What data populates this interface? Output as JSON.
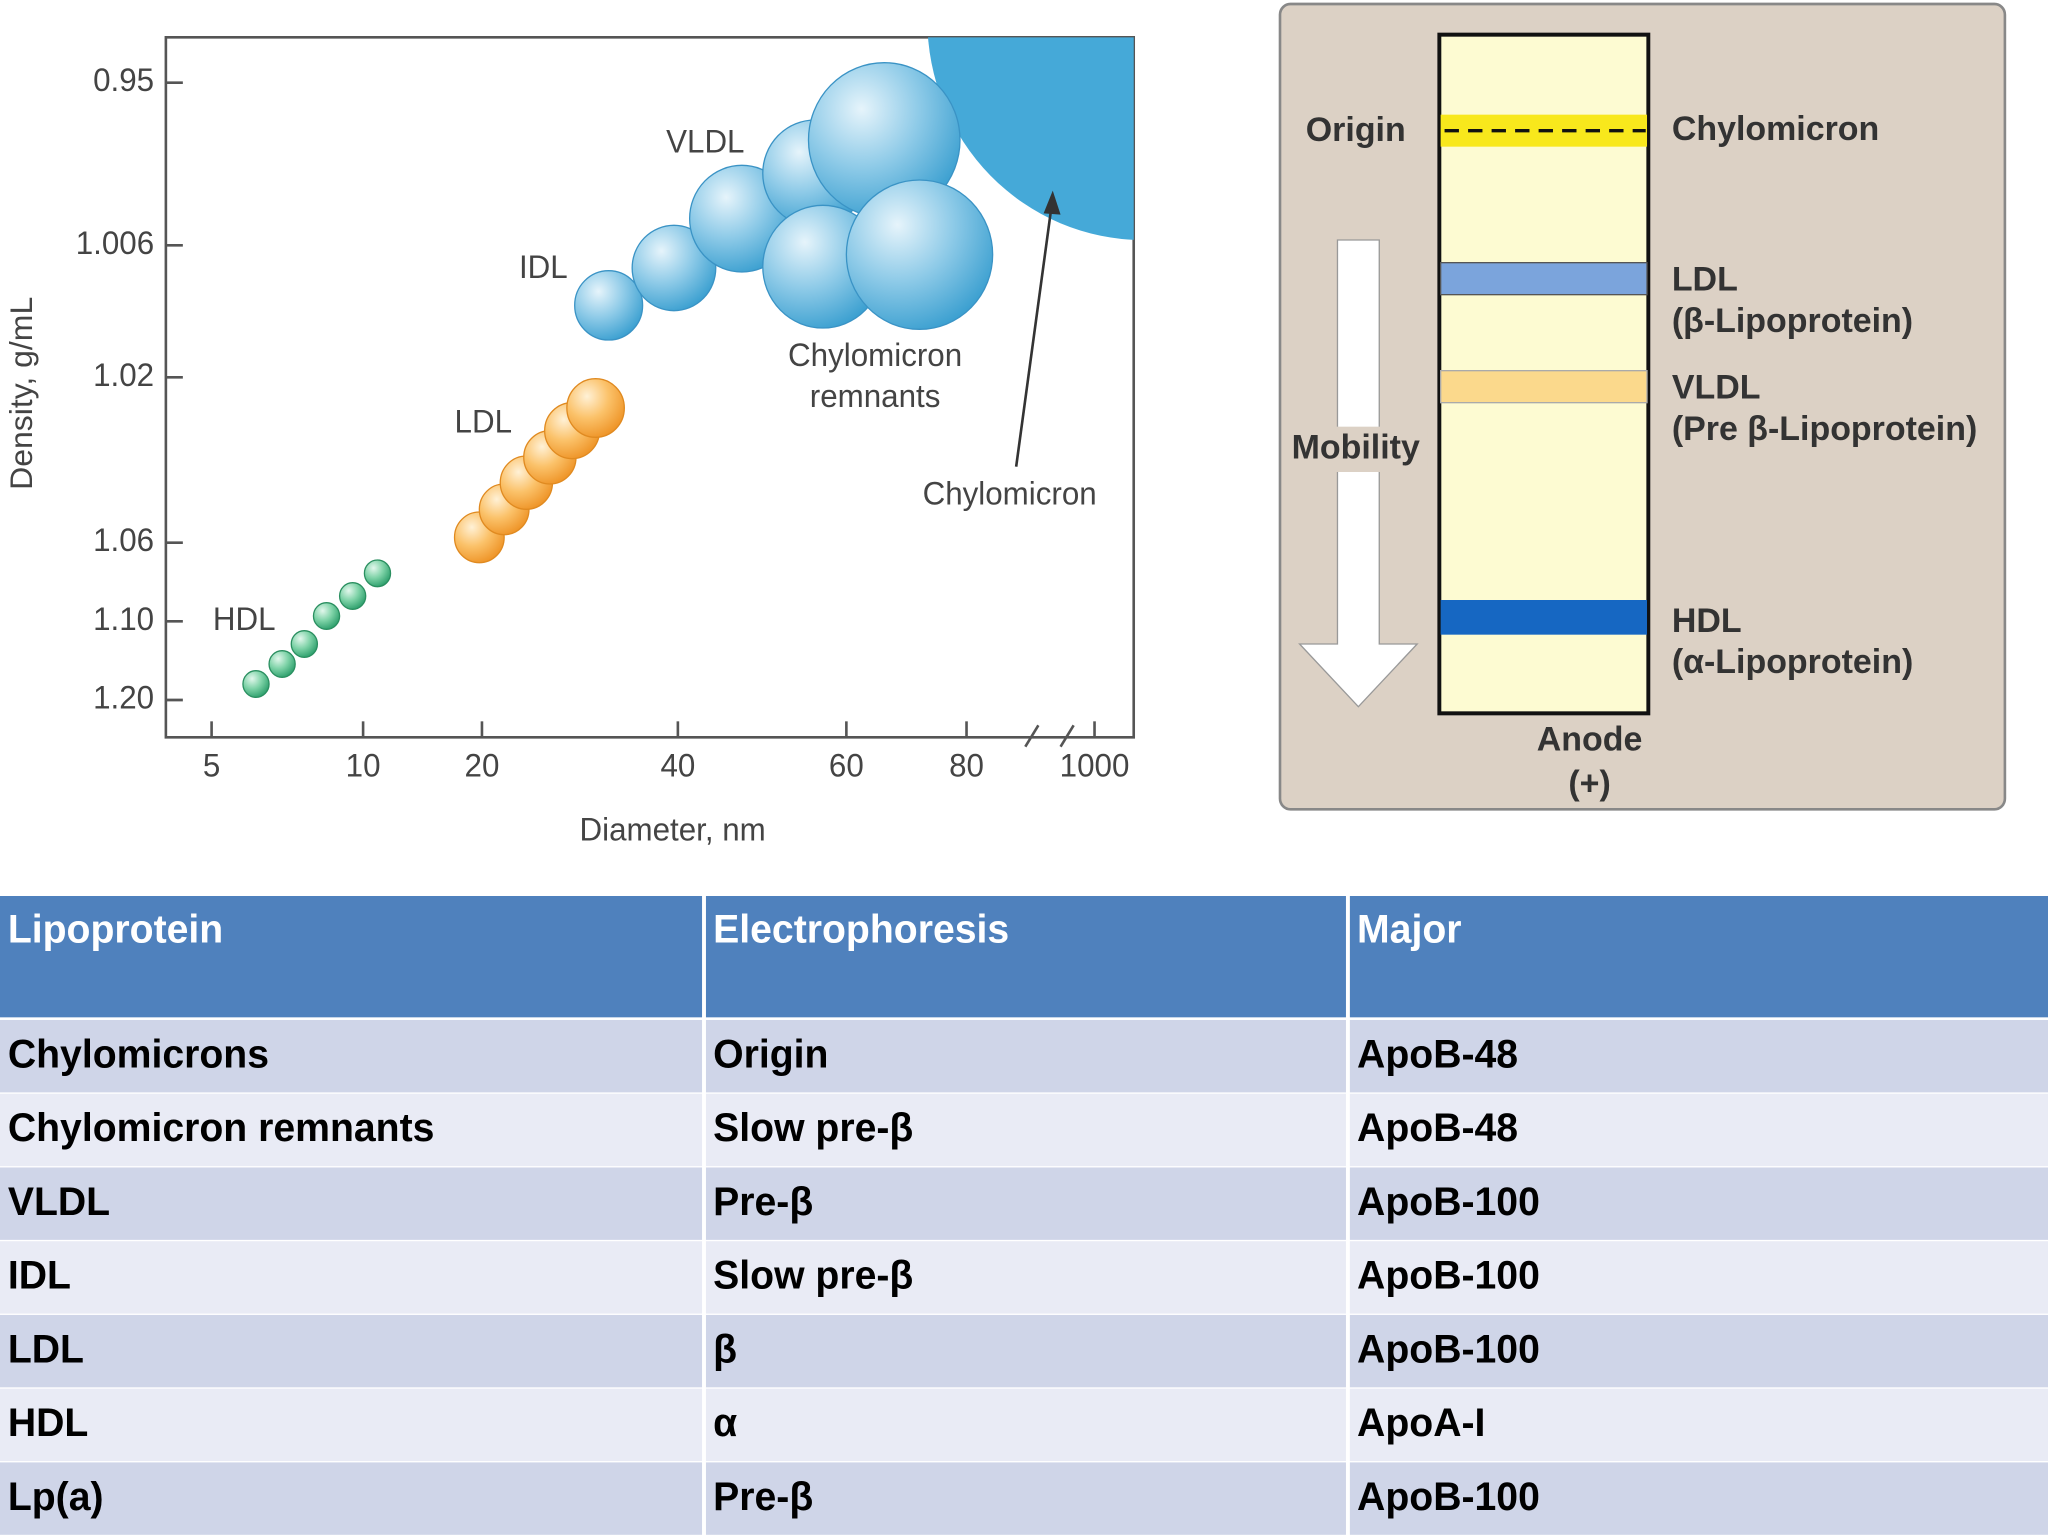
{
  "density_plot": {
    "y_axis_label": "Density, g/mL",
    "x_axis_label": "Diameter, nm",
    "y_ticks": [
      "0.95",
      "1.006",
      "1.02",
      "1.06",
      "1.10",
      "1.20"
    ],
    "x_ticks": [
      "5",
      "10",
      "20",
      "40",
      "60",
      "80",
      "1000"
    ],
    "labels": {
      "vldl": "VLDL",
      "idl": "IDL",
      "ldl": "LDL",
      "hdl": "HDL",
      "chylomicron": "Chylomicron",
      "chylomicron_remnants": [
        "Chylomicron",
        "remnants"
      ]
    }
  },
  "electrophoresis": {
    "origin": "Origin",
    "mobility": "Mobility",
    "anode": [
      "Anode",
      "(+)"
    ],
    "bands": [
      {
        "name": "Chylomicron"
      },
      {
        "name": "LDL",
        "alt": "(β-Lipoprotein)"
      },
      {
        "name": "VLDL",
        "alt": "(Pre β-Lipoprotein)"
      },
      {
        "name": "HDL",
        "alt": "(α-Lipoprotein)"
      }
    ]
  },
  "table": {
    "header": [
      "Lipoprotein",
      "Electrophoresis",
      "Major"
    ],
    "rows": [
      [
        "Chylomicrons",
        "Origin",
        "ApoB-48"
      ],
      [
        "Chylomicron remnants",
        "Slow pre-β",
        "ApoB-48"
      ],
      [
        "VLDL",
        "Pre-β",
        "ApoB-100"
      ],
      [
        "IDL",
        "Slow pre-β",
        "ApoB-100"
      ],
      [
        "LDL",
        "β",
        "ApoB-100"
      ],
      [
        "HDL",
        "α",
        "ApoA-I"
      ],
      [
        "Lp(a)",
        "Pre-β",
        "ApoB-100"
      ]
    ]
  }
}
